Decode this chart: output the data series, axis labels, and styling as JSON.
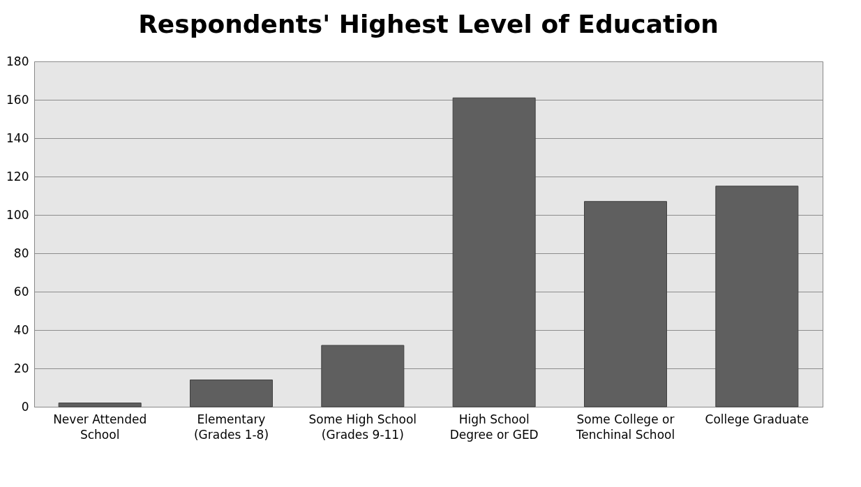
{
  "chart_data": {
    "type": "bar",
    "title": "Respondents' Highest Level of Education",
    "categories": [
      "Never Attended School",
      "Elementary (Grades 1-8)",
      "Some High School (Grades 9-11)",
      "High School Degree or GED",
      "Some College or Tenchinal School",
      "College Graduate"
    ],
    "values": [
      2,
      14,
      32,
      161,
      107,
      115
    ],
    "color": "#5f5f5f",
    "ylim": [
      0,
      180
    ],
    "yticks": [
      0,
      20,
      40,
      60,
      80,
      100,
      120,
      140,
      160,
      180
    ],
    "grid": "y"
  }
}
